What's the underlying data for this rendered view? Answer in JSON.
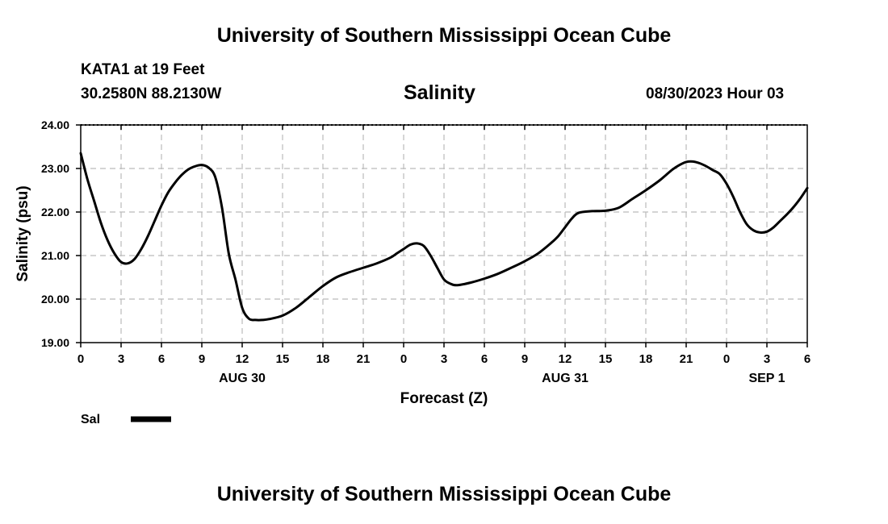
{
  "header": {
    "title": "University of Southern Mississippi Ocean Cube",
    "station": "KATA1 at 19 Feet",
    "coordinates": "30.2580N  88.2130W",
    "datetime": "08/30/2023 Hour 03"
  },
  "footer": {
    "title": "University of Southern Mississippi Ocean Cube"
  },
  "chart_data": {
    "type": "line",
    "title": "Salinity",
    "xlabel": "Forecast (Z)",
    "ylabel": "Salinity (psu)",
    "ylim": [
      19.0,
      24.0
    ],
    "yticks": [
      "19.00",
      "20.00",
      "21.00",
      "22.00",
      "23.00",
      "24.00"
    ],
    "xlim": [
      0,
      54
    ],
    "xtick_labels": [
      "0",
      "3",
      "6",
      "9",
      "12",
      "15",
      "18",
      "21",
      "0",
      "3",
      "6",
      "9",
      "12",
      "15",
      "18",
      "21",
      "0",
      "3",
      "6"
    ],
    "date_labels": [
      {
        "x": 12,
        "label": "AUG 30"
      },
      {
        "x": 36,
        "label": "AUG 31"
      },
      {
        "x": 51,
        "label": "SEP 1"
      }
    ],
    "grid": true,
    "legend": [
      {
        "label": "Sal",
        "color": "#000000"
      }
    ],
    "series": [
      {
        "name": "Sal",
        "color": "#000000",
        "x": [
          0,
          0.5,
          1,
          1.5,
          2,
          2.5,
          3,
          3.5,
          4,
          4.5,
          5,
          5.5,
          6,
          6.5,
          7,
          7.5,
          8,
          8.5,
          9,
          9.5,
          10,
          10.5,
          11,
          11.5,
          12,
          12.5,
          13,
          13.5,
          14,
          15,
          16,
          17,
          18,
          19,
          20,
          21,
          22,
          23,
          23.5,
          24,
          24.5,
          25,
          25.5,
          26,
          26.5,
          27,
          27.5,
          28,
          29,
          30,
          31,
          32,
          33,
          34,
          35,
          35.5,
          36,
          36.5,
          37,
          38,
          39,
          40,
          41,
          42,
          43,
          43.5,
          44,
          44.5,
          45,
          45.5,
          46,
          46.5,
          47,
          47.5,
          48,
          48.5,
          49,
          49.5,
          50,
          50.5,
          51,
          51.5,
          52,
          52.5,
          53,
          53.5,
          54
        ],
        "values": [
          23.35,
          22.75,
          22.25,
          21.75,
          21.35,
          21.05,
          20.85,
          20.82,
          20.92,
          21.15,
          21.45,
          21.8,
          22.15,
          22.45,
          22.67,
          22.85,
          22.98,
          23.05,
          23.08,
          23.02,
          22.8,
          22.1,
          21.05,
          20.45,
          19.8,
          19.55,
          19.52,
          19.52,
          19.54,
          19.62,
          19.8,
          20.05,
          20.3,
          20.5,
          20.62,
          20.72,
          20.82,
          20.95,
          21.05,
          21.15,
          21.25,
          21.28,
          21.22,
          21.0,
          20.72,
          20.45,
          20.35,
          20.32,
          20.38,
          20.47,
          20.58,
          20.72,
          20.87,
          21.05,
          21.3,
          21.45,
          21.65,
          21.85,
          21.98,
          22.02,
          22.03,
          22.1,
          22.3,
          22.5,
          22.72,
          22.85,
          22.98,
          23.08,
          23.15,
          23.16,
          23.12,
          23.05,
          22.96,
          22.87,
          22.65,
          22.35,
          22.0,
          21.72,
          21.58,
          21.53,
          21.55,
          21.65,
          21.8,
          21.95,
          22.12,
          22.32,
          22.55
        ]
      }
    ]
  }
}
